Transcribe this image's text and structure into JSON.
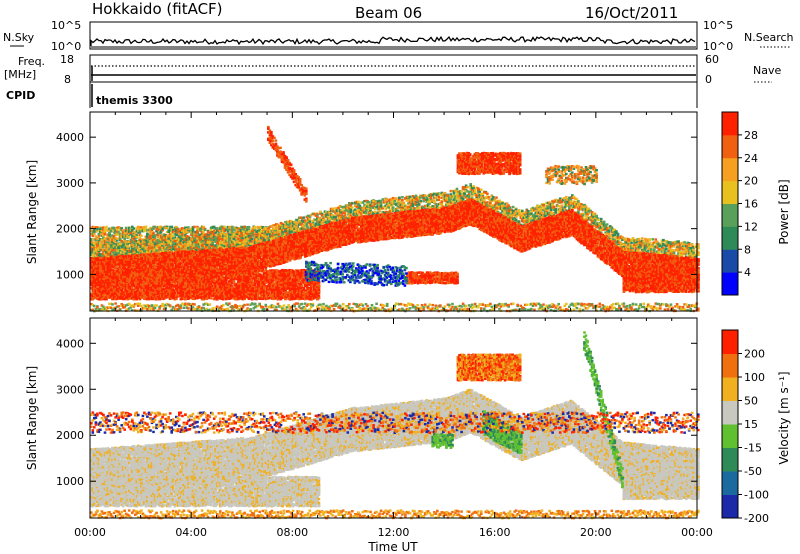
{
  "header": {
    "station": "Hokkaido (fitACF)",
    "beam": "Beam 06",
    "date": "16/Oct/2011"
  },
  "top_panels": {
    "nsky_label": "N.Sky",
    "nsky_ticks": [
      "10^5",
      "10^0"
    ],
    "nsearch_label": "N.Search",
    "nsearch_ticks": [
      "10^5",
      "10^0"
    ],
    "freq_label": "Freq.",
    "freq_unit": "[MHz]",
    "freq_ticks": [
      "18",
      "8"
    ],
    "nave_label": "Nave",
    "nave_ticks": [
      "60",
      "0"
    ],
    "cpid_label": "CPID",
    "cpid_value": "themis 3300"
  },
  "chart_data": [
    {
      "type": "heatmap",
      "name": "power",
      "ylabel": "Slant Range [km]",
      "ylim": [
        200,
        4550
      ],
      "yticks": [
        "1000",
        "2000",
        "3000",
        "4000"
      ],
      "colorbar_label": "Power [dB]",
      "colorbar_ticks": [
        "4",
        "8",
        "12",
        "16",
        "20",
        "24",
        "28"
      ],
      "colors": [
        "#0000ff",
        "#1a4aa8",
        "#2e8b57",
        "#5aa05a",
        "#e8c020",
        "#f5a020",
        "#f06010",
        "#ff2000"
      ],
      "xlim": [
        "00:00",
        "24:00"
      ],
      "xticks": [
        "00:00",
        "04:00",
        "08:00",
        "12:00",
        "16:00",
        "20:00",
        "00:00"
      ]
    },
    {
      "type": "heatmap",
      "name": "velocity",
      "ylabel": "Slant Range [km]",
      "ylim": [
        200,
        4550
      ],
      "yticks": [
        "1000",
        "2000",
        "3000",
        "4000"
      ],
      "colorbar_label": "Velocity [m s⁻¹]",
      "colorbar_ticks": [
        "200",
        "100",
        "50",
        "15",
        "-15",
        "-50",
        "-100",
        "-200"
      ],
      "colors": [
        "#1a2aa8",
        "#1a6aa0",
        "#2e8b57",
        "#60c030",
        "#c8c8c0",
        "#f0b020",
        "#f07010",
        "#ff2000"
      ],
      "xlabel": "Time UT",
      "xlim": [
        "00:00",
        "24:00"
      ],
      "xticks": [
        "00:00",
        "04:00",
        "08:00",
        "12:00",
        "16:00",
        "20:00",
        "00:00"
      ]
    }
  ]
}
